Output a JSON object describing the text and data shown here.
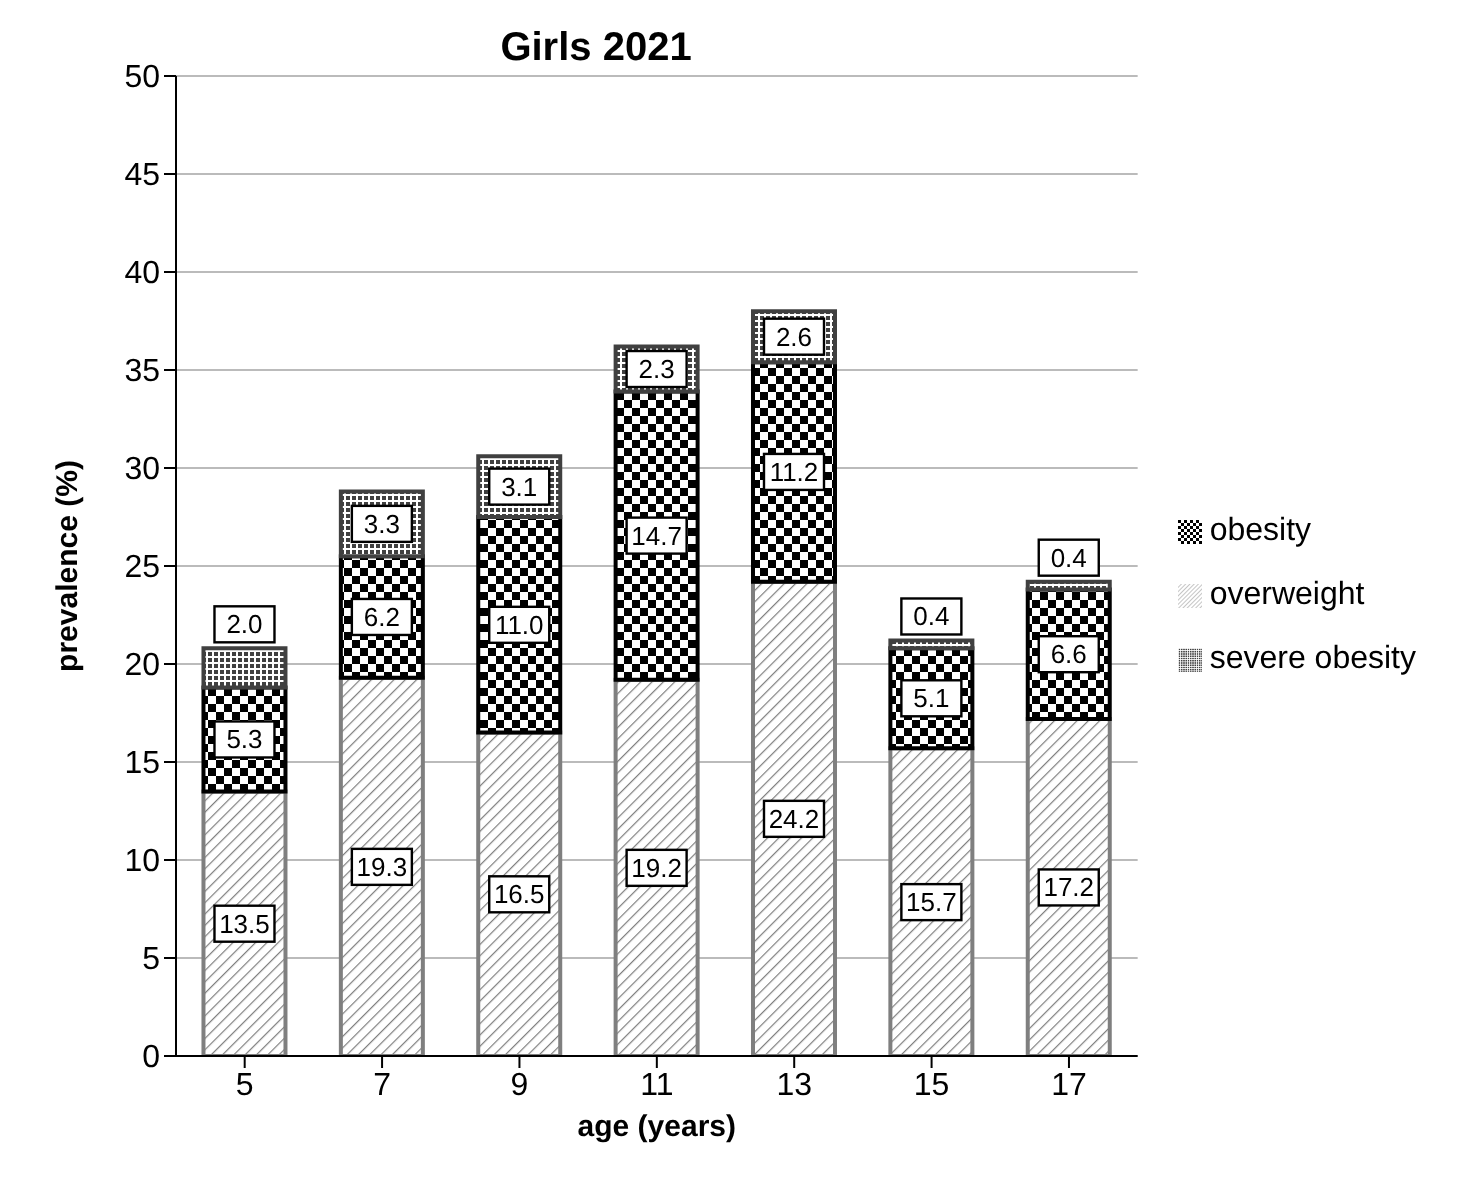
{
  "chart_data": {
    "type": "bar",
    "title": "Girls 2021",
    "xlabel": "age (years)",
    "ylabel": "prevalence (%)",
    "categories": [
      "5",
      "7",
      "9",
      "11",
      "13",
      "15",
      "17"
    ],
    "stacked": true,
    "ylim": [
      0,
      50
    ],
    "yticks": [
      0,
      5,
      10,
      15,
      20,
      25,
      30,
      35,
      40,
      45,
      50
    ],
    "grid": "y",
    "legend": "right",
    "series": [
      {
        "name": "overweight",
        "color": "#7f7f7f",
        "values": [
          13.5,
          19.3,
          16.5,
          19.2,
          24.2,
          15.7,
          17.2
        ],
        "value_labels": [
          "13.5",
          "19.3",
          "16.5",
          "19.2",
          "24.2",
          "15.7",
          "17.2"
        ]
      },
      {
        "name": "obesity",
        "color": "#000000",
        "values": [
          5.3,
          6.2,
          11.0,
          14.7,
          11.2,
          5.1,
          6.6
        ],
        "value_labels": [
          "5.3",
          "6.2",
          "11.0",
          "14.7",
          "11.2",
          "5.1",
          "6.6"
        ]
      },
      {
        "name": "severe obesity",
        "color": "#404040",
        "values": [
          2.0,
          3.3,
          3.1,
          2.3,
          2.6,
          0.4,
          0.4
        ],
        "value_labels": [
          "2.0",
          "3.3",
          "3.1",
          "2.3",
          "2.6",
          "0.4",
          "0.4"
        ]
      }
    ]
  }
}
